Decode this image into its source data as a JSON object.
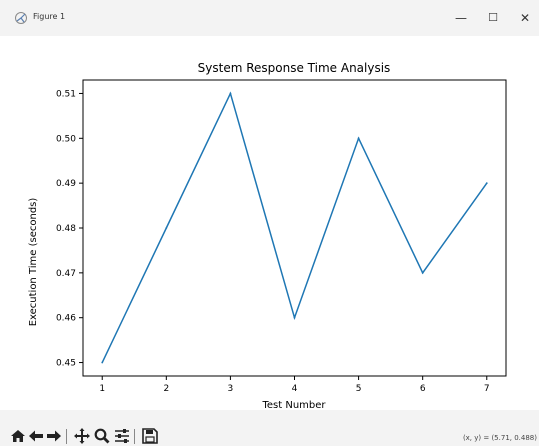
{
  "window": {
    "title": "Figure 1",
    "minimize_glyph": "—",
    "maximize_glyph": "☐",
    "close_glyph": "✕"
  },
  "chart_data": {
    "type": "line",
    "title": "System Response Time Analysis",
    "xlabel": "Test Number",
    "ylabel": "Execution Time (seconds)",
    "x": [
      1,
      2,
      3,
      4,
      5,
      6,
      7
    ],
    "series": [
      {
        "values": [
          0.45,
          0.48,
          0.51,
          0.46,
          0.5,
          0.47,
          0.49
        ],
        "color": "#1f77b4"
      }
    ],
    "xticks": [
      "1",
      "2",
      "3",
      "4",
      "5",
      "6",
      "7"
    ],
    "yticks": [
      "0.45",
      "0.46",
      "0.47",
      "0.48",
      "0.49",
      "0.50",
      "0.51"
    ],
    "xlim": [
      0.7,
      7.3
    ],
    "ylim": [
      0.447,
      0.513
    ],
    "grid": false
  },
  "toolbar": {
    "icons": [
      "home-icon",
      "back-icon",
      "forward-icon",
      "pan-icon",
      "zoom-icon",
      "configure-subplots-icon",
      "save-icon"
    ],
    "coords_text": "(x, y) = (5.71, 0.488)"
  }
}
